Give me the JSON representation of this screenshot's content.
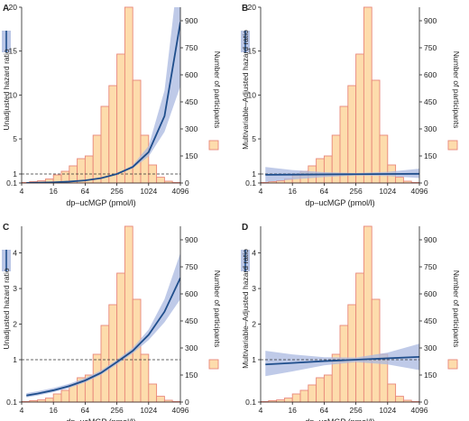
{
  "colors": {
    "bar_fill": "#fddcac",
    "bar_stroke": "#e8877a",
    "curve": "#1f4e8c",
    "band": "#a9b8e0",
    "reference_line": "#333333",
    "axis": "#222222"
  },
  "chart_data": [
    {
      "panel_label": "A",
      "type": "bar",
      "overlay": "line with confidence band",
      "xlabel": "dp–ucMGP (pmol/l)",
      "ylabel": "Unadjusted hazard ratio",
      "y2label": "Number of participants",
      "x_scale": "log2",
      "xlim": [
        4,
        4096
      ],
      "x_ticks": [
        "4",
        "16",
        "64",
        "256",
        "1024",
        "4096"
      ],
      "ylim": [
        0.1,
        20
      ],
      "y_ticks": [
        "0.1",
        "1",
        "5",
        "10",
        "15",
        "20"
      ],
      "y2lim": [
        0,
        975
      ],
      "y2_ticks": [
        "0",
        "150",
        "300",
        "450",
        "600",
        "750",
        "900"
      ],
      "reference_line_y": 1,
      "histogram": {
        "bin_edges_log2": [
          2,
          2.5,
          3,
          3.5,
          4,
          4.5,
          5,
          5.5,
          6,
          6.5,
          7,
          7.5,
          8,
          8.5,
          9,
          9.5,
          10,
          10.5,
          11,
          11.5,
          12
        ],
        "counts": [
          3,
          8,
          12,
          22,
          45,
          65,
          95,
          135,
          150,
          265,
          425,
          540,
          715,
          975,
          570,
          265,
          100,
          32,
          10,
          3
        ]
      },
      "curve": {
        "log2_x": [
          2.3,
          3,
          4,
          5,
          6,
          7,
          8,
          9,
          10,
          11,
          12
        ],
        "hr": [
          0.11,
          0.13,
          0.17,
          0.24,
          0.36,
          0.58,
          1.0,
          1.8,
          3.5,
          7.6,
          18.3
        ],
        "lower": [
          0.1,
          0.12,
          0.16,
          0.23,
          0.34,
          0.55,
          0.95,
          1.65,
          3.0,
          5.8,
          11.0
        ],
        "upper": [
          0.12,
          0.14,
          0.18,
          0.26,
          0.38,
          0.61,
          1.05,
          2.0,
          4.2,
          10.5,
          26.0
        ]
      }
    },
    {
      "panel_label": "B",
      "type": "bar",
      "overlay": "line with confidence band",
      "xlabel": "dp–ucMGP (pmol/l)",
      "ylabel": "Multivariable–Adjusted hazard ratio",
      "y2label": "Number of participants",
      "x_scale": "log2",
      "xlim": [
        4,
        4096
      ],
      "x_ticks": [
        "4",
        "16",
        "64",
        "256",
        "1024",
        "4096"
      ],
      "ylim": [
        0.1,
        20
      ],
      "y_ticks": [
        "0.1",
        "1",
        "5",
        "10",
        "15",
        "20"
      ],
      "y2lim": [
        0,
        975
      ],
      "y2_ticks": [
        "0",
        "150",
        "300",
        "450",
        "600",
        "750",
        "900"
      ],
      "reference_line_y": 1,
      "histogram": {
        "bin_edges_log2": [
          2,
          2.5,
          3,
          3.5,
          4,
          4.5,
          5,
          5.5,
          6,
          6.5,
          7,
          7.5,
          8,
          8.5,
          9,
          9.5,
          10,
          10.5,
          11,
          11.5,
          12
        ],
        "counts": [
          3,
          8,
          12,
          22,
          45,
          65,
          95,
          135,
          150,
          265,
          425,
          540,
          715,
          975,
          570,
          265,
          100,
          32,
          10,
          3
        ]
      },
      "curve": {
        "log2_x": [
          2.3,
          4,
          6,
          8,
          10,
          12
        ],
        "hr": [
          0.92,
          0.94,
          0.96,
          0.98,
          1.0,
          1.02
        ],
        "lower": [
          0.2,
          0.45,
          0.7,
          0.85,
          0.8,
          0.6
        ],
        "upper": [
          1.8,
          1.45,
          1.2,
          1.1,
          1.25,
          1.6
        ]
      }
    },
    {
      "panel_label": "C",
      "type": "bar",
      "overlay": "line with confidence band",
      "xlabel": "dp–ucMGP (pmol/l)",
      "ylabel": "Unadjusted hazard ratio",
      "y2label": "Number of participants",
      "x_scale": "log2",
      "xlim": [
        4,
        4096
      ],
      "x_ticks": [
        "4",
        "16",
        "64",
        "256",
        "1024",
        "4096"
      ],
      "ylim": [
        0.1,
        4.75
      ],
      "y_ticks": [
        "0.1",
        "1",
        "2",
        "3",
        "4"
      ],
      "y2lim": [
        0,
        975
      ],
      "y2_ticks": [
        "0",
        "150",
        "300",
        "450",
        "600",
        "750",
        "900"
      ],
      "reference_line_y": 1,
      "histogram": {
        "bin_edges_log2": [
          2,
          2.5,
          3,
          3.5,
          4,
          4.5,
          5,
          5.5,
          6,
          6.5,
          7,
          7.5,
          8,
          8.5,
          9,
          9.5,
          10,
          10.5,
          11,
          11.5,
          12
        ],
        "counts": [
          3,
          8,
          12,
          22,
          45,
          65,
          95,
          135,
          150,
          265,
          425,
          540,
          715,
          975,
          570,
          265,
          100,
          32,
          10,
          3
        ]
      },
      "curve": {
        "log2_x": [
          2.3,
          3,
          4,
          5,
          6,
          7,
          8,
          9,
          10,
          11,
          12
        ],
        "hr": [
          0.24,
          0.28,
          0.35,
          0.44,
          0.56,
          0.72,
          0.95,
          1.25,
          1.7,
          2.35,
          3.3
        ],
        "lower": [
          0.2,
          0.24,
          0.31,
          0.4,
          0.52,
          0.68,
          0.9,
          1.18,
          1.55,
          2.05,
          2.7
        ],
        "upper": [
          0.29,
          0.33,
          0.4,
          0.49,
          0.61,
          0.77,
          1.0,
          1.33,
          1.85,
          2.7,
          4.0
        ]
      }
    },
    {
      "panel_label": "D",
      "type": "bar",
      "overlay": "line with confidence band",
      "xlabel": "dp–ucMGP (pmol/l)",
      "ylabel": "Multivariable–Adjusted hazard ratio",
      "y2label": "Number of participants",
      "x_scale": "log2",
      "xlim": [
        4,
        4096
      ],
      "x_ticks": [
        "4",
        "16",
        "64",
        "256",
        "1024",
        "4096"
      ],
      "ylim": [
        0.1,
        4.75
      ],
      "y_ticks": [
        "0.1",
        "1",
        "2",
        "3",
        "4"
      ],
      "y2lim": [
        0,
        975
      ],
      "y2_ticks": [
        "0",
        "150",
        "300",
        "450",
        "600",
        "750",
        "900"
      ],
      "reference_line_y": 1,
      "histogram": {
        "bin_edges_log2": [
          2,
          2.5,
          3,
          3.5,
          4,
          4.5,
          5,
          5.5,
          6,
          6.5,
          7,
          7.5,
          8,
          8.5,
          9,
          9.5,
          10,
          10.5,
          11,
          11.5,
          12
        ],
        "counts": [
          3,
          8,
          12,
          22,
          45,
          65,
          95,
          135,
          150,
          265,
          425,
          540,
          715,
          975,
          570,
          265,
          100,
          32,
          10,
          3
        ]
      },
      "curve": {
        "log2_x": [
          2.3,
          4,
          6,
          8,
          10,
          12
        ],
        "hr": [
          0.9,
          0.93,
          0.97,
          1.0,
          1.04,
          1.08
        ],
        "lower": [
          0.65,
          0.75,
          0.88,
          0.95,
          0.9,
          0.78
        ],
        "upper": [
          1.25,
          1.15,
          1.07,
          1.06,
          1.2,
          1.45
        ]
      }
    }
  ]
}
